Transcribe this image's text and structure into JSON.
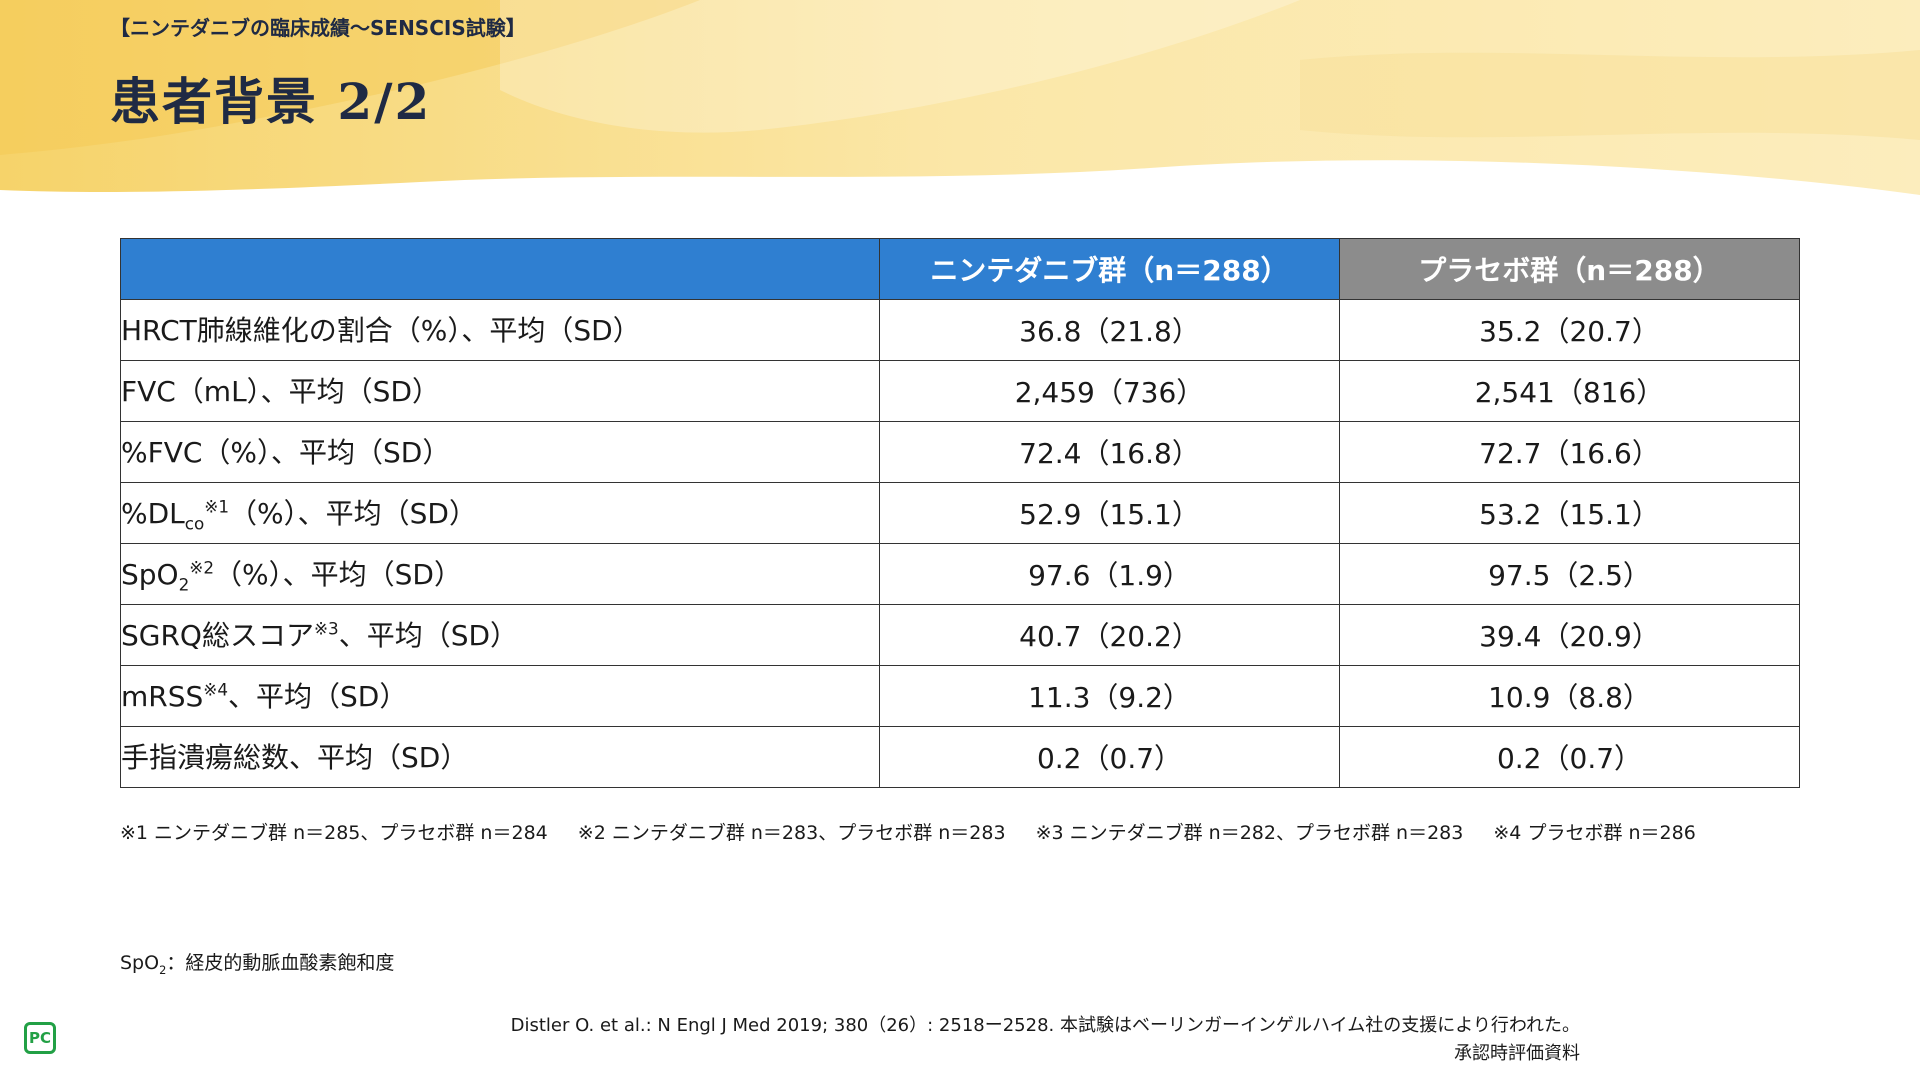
{
  "header": {
    "section_label": "【ニンテダニブの臨床成績〜SENSCIS試験】",
    "title": "患者背景 2/2"
  },
  "table": {
    "columns": [
      "",
      "ニンテダニブ群（n＝288）",
      "プラセボ群（n＝288）"
    ],
    "rows": [
      {
        "label_main": "HRCT肺線維化の割合（%）、平均（SD）",
        "label_sub": "",
        "label_sup": "",
        "label_rest": "",
        "nintedanib": "36.8（21.8）",
        "placebo": "35.2（20.7）"
      },
      {
        "label_main": "FVC（mL）、平均（SD）",
        "label_sub": "",
        "label_sup": "",
        "label_rest": "",
        "nintedanib": "2,459（736）",
        "placebo": "2,541（816）"
      },
      {
        "label_main": "%FVC（%）、平均（SD）",
        "label_sub": "",
        "label_sup": "",
        "label_rest": "",
        "nintedanib": "72.4（16.8）",
        "placebo": "72.7（16.6）"
      },
      {
        "label_main": "%DL",
        "label_sub": "co",
        "label_sup": "※1",
        "label_rest": "（%）、平均（SD）",
        "nintedanib": "52.9（15.1）",
        "placebo": "53.2（15.1）"
      },
      {
        "label_main": "SpO",
        "label_sub": "2",
        "label_sup": "※2",
        "label_rest": "（%）、平均（SD）",
        "nintedanib": "97.6（1.9）",
        "placebo": "97.5（2.5）"
      },
      {
        "label_main": "SGRQ総スコア",
        "label_sub": "",
        "label_sup": "※3",
        "label_rest": "、平均（SD）",
        "nintedanib": "40.7（20.2）",
        "placebo": "39.4（20.9）"
      },
      {
        "label_main": "mRSS",
        "label_sub": "",
        "label_sup": "※4",
        "label_rest": "、平均（SD）",
        "nintedanib": "11.3（9.2）",
        "placebo": "10.9（8.8）"
      },
      {
        "label_main": "手指潰瘍総数、平均（SD）",
        "label_sub": "",
        "label_sup": "",
        "label_rest": "",
        "nintedanib": "0.2（0.7）",
        "placebo": "0.2（0.7）"
      }
    ]
  },
  "footnotes": [
    "※1 ニンテダニブ群 n＝285、プラセボ群 n＝284",
    "※2 ニンテダニブ群 n＝283、プラセボ群 n＝283",
    "※3 ニンテダニブ群 n＝282、プラセボ群 n＝283",
    "※4 プラセボ群 n＝286"
  ],
  "abbreviation": {
    "main": "SpO",
    "sub": "2",
    "rest": "：経皮的動脈血酸素飽和度"
  },
  "reference": "Distler O. et al.: N Engl J Med 2019; 380（26）: 2518ー2528. 本試験はベーリンガーインゲルハイム社の支援により行われた。",
  "approval_note": "承認時評価資料",
  "logo_text": "PC",
  "colors": {
    "header_blue": "#2f7fd1",
    "header_gray": "#8c8c8c",
    "banner_yellow": "#f8d878"
  }
}
